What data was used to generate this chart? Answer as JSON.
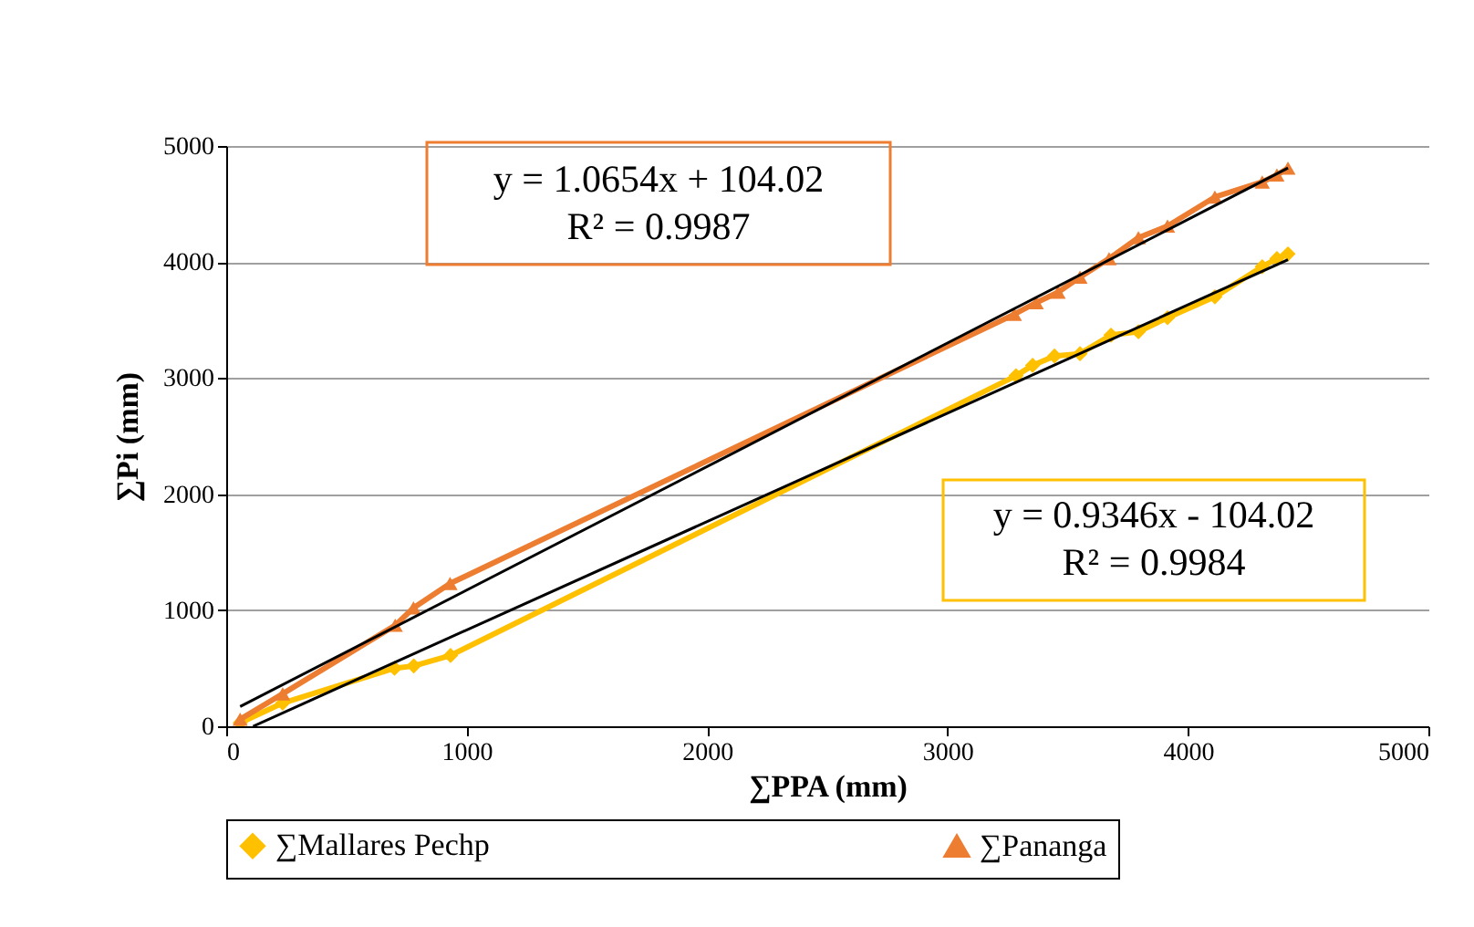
{
  "chart_data": {
    "type": "line",
    "xlabel": "∑PPA (mm)",
    "ylabel": "∑Pi (mm)",
    "xlim": [
      0,
      5000
    ],
    "xticks": [
      0,
      1000,
      2000,
      3000,
      4000,
      5000
    ],
    "ylim": [
      0,
      5000
    ],
    "yticks": [
      0,
      1000,
      2000,
      3000,
      4000,
      5000
    ],
    "grid": "y",
    "legend": "bottom",
    "line_style": "solid",
    "annotations": [
      "y = 0.9346x - 104.02\nR² = 0.9984",
      "y = 1.0654x + 104.02\nR² = 0.9987"
    ],
    "series": [
      {
        "name": "∑Mallares  Pechp",
        "color": "#ffc000",
        "marker": "diamond",
        "x": [
          58,
          235,
          700,
          780,
          933,
          3285,
          3354,
          3445,
          3551,
          3680,
          3794,
          3915,
          4112,
          4309,
          4370,
          4416
        ],
        "values": [
          30,
          200,
          500,
          520,
          610,
          3020,
          3110,
          3190,
          3210,
          3370,
          3400,
          3520,
          3700,
          3960,
          4030,
          4070
        ]
      },
      {
        "name": "∑Pananga",
        "color": "#ed7d31",
        "marker": "triangle",
        "x": [
          58,
          235,
          703,
          779,
          931,
          3278,
          3369,
          3460,
          3551,
          3672,
          3794,
          3915,
          4112,
          4309,
          4370,
          4416
        ],
        "values": [
          60,
          280,
          870,
          1020,
          1230,
          3550,
          3650,
          3740,
          3870,
          4030,
          4210,
          4310,
          4560,
          4690,
          4750,
          4810
        ]
      },
      {
        "type": "line",
        "color": "#000000",
        "marker": "none",
        "x": [
          112,
          4416
        ],
        "values": [
          0,
          4020
        ]
      },
      {
        "type": "line",
        "color": "#000000",
        "marker": "none",
        "x": [
          58,
          4416
        ],
        "values": [
          170,
          4810
        ]
      }
    ]
  }
}
